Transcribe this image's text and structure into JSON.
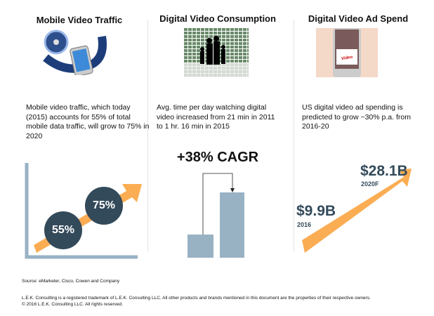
{
  "panels": [
    {
      "title": "Mobile Video Traffic",
      "description": "Mobile video traffic, which today (2015)  accounts for 55% of total mobile data traffic, will grow to 75% in 2020",
      "image": "film-reel-smartphone-icon"
    },
    {
      "title": "Digital Video Consumption",
      "description": "Avg. time per day watching digital video increased from 21 min in 2011 to 1 hr. 16 min in 2015",
      "image": "family-video-wall-icon"
    },
    {
      "title": "Digital Video Ad Spend",
      "description": "US digital video ad spending is predicted to grow ~30% p.a. from 2016-20",
      "image": "video-advertising-phone-icon"
    }
  ],
  "traffic": {
    "start": "55%",
    "end": "75%"
  },
  "consumption": {
    "cagr": "+38% CAGR",
    "values_min": [
      21,
      76
    ]
  },
  "adspend": {
    "start_value": "$9.9B",
    "start_year": "2016",
    "end_value": "$28.1B",
    "end_year": "2020F"
  },
  "colors": {
    "navy": "#334a5a",
    "orange": "#fbad54",
    "bar": "#98b2c4"
  },
  "source": "Source:  eMarketer, Cisco, Cowen and Company",
  "footer": {
    "line1": "L.E.K. Consulting is a registered trademark of L.E.K. Consulting LLC. All other products and brands mentioned in this document are the properties of their respective owners.",
    "line2": "© 2016 L.E.K. Consulting LLC. All rights reserved."
  }
}
